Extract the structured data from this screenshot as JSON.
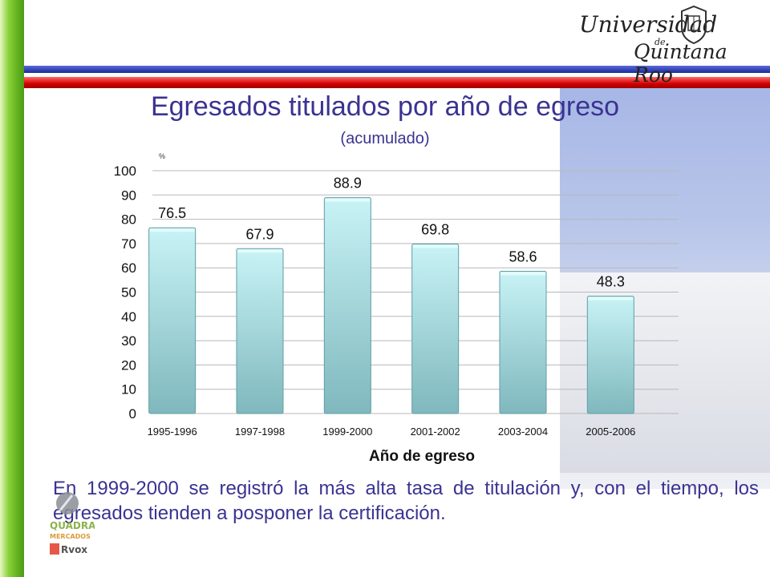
{
  "header": {
    "logo_text": [
      "Universidad",
      "de",
      "Quintana Roo"
    ]
  },
  "title": "Egresados titulados por año de egreso",
  "subtitle": "(acumulado)",
  "chart_data": {
    "type": "bar",
    "unit_label": "%",
    "xlabel": "Año de egreso",
    "categories": [
      "1995-1996",
      "1997-1998",
      "1999-2000",
      "2001-2002",
      "2003-2004",
      "2005-2006"
    ],
    "values": [
      76.5,
      67.9,
      88.9,
      69.8,
      58.6,
      48.3
    ],
    "ylim": [
      0,
      100
    ],
    "yticks": [
      0,
      10,
      20,
      30,
      40,
      50,
      60,
      70,
      80,
      90,
      100
    ],
    "grid": true,
    "colors": {
      "bar_top": "#c8f3f6",
      "bar_bottom": "#7fb8bd",
      "bar_stroke": "#5f9ea3",
      "grid": "#b8b8b8"
    }
  },
  "caption": "En 1999-2000 se registró la más alta tasa de titulación y, con el tiempo, los egresados tienden a posponer la certificación.",
  "footer_logo": {
    "lines": [
      "QUADRA",
      "MERCADOS",
      "Rvox"
    ]
  },
  "colors": {
    "title": "#3a3392",
    "accent_green": "#62b520",
    "accent_red": "#d40000",
    "accent_blue": "#1a2a9a"
  }
}
